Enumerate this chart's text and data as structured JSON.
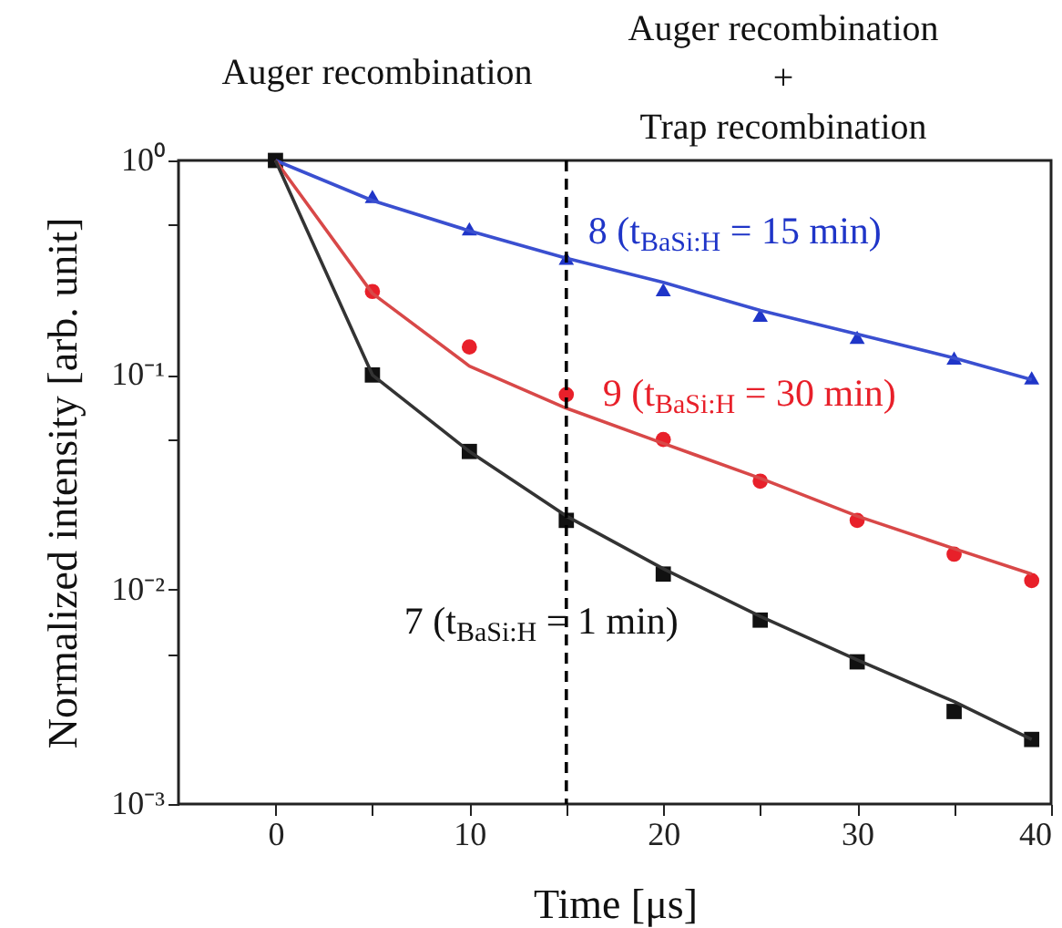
{
  "chart_data": {
    "type": "scatter",
    "xlabel": "Time [μs]",
    "ylabel": "Normalized intensity [arb. unit]",
    "annotations": [
      "Auger recombination",
      "Auger recombination\n+\nTrap recombination"
    ],
    "log": "y",
    "xlim": [
      -5,
      40
    ],
    "xticks": [
      0,
      {
        "value": 5,
        "label": null
      },
      10,
      {
        "value": 15,
        "label": null
      },
      20,
      {
        "value": 25,
        "label": null
      },
      30,
      {
        "value": 35,
        "label": null
      },
      40
    ],
    "ylim": [
      0.001,
      1
    ],
    "yticks": [
      {
        "value": 0.001,
        "label": "10⁻³"
      },
      {
        "value": 0.005,
        "label": null
      },
      {
        "value": 0.01,
        "label": "10⁻²"
      },
      {
        "value": 0.05,
        "label": null
      },
      {
        "value": 0.1,
        "label": "10⁻¹"
      },
      {
        "value": 0.5,
        "label": null
      },
      {
        "value": 1,
        "label": "10⁰"
      }
    ],
    "ref_lines": [
      {
        "axis": "x",
        "value": 15,
        "color": "#000000",
        "line_style": "dashed"
      }
    ],
    "series": [
      {
        "name": "8 (t$_{BaSi:H}$ = 15 min)",
        "marker": "triangle",
        "color": "#1f35c8",
        "x": [
          5,
          10,
          15,
          20,
          25,
          30,
          35,
          39
        ],
        "values": [
          0.68,
          0.48,
          0.35,
          0.25,
          0.19,
          0.15,
          0.12,
          0.097
        ]
      },
      {
        "name": "9 (t$_{BaSi:H}$ = 30 min)",
        "marker": "circle",
        "color": "#e8202a",
        "x": [
          5,
          10,
          15,
          20,
          25,
          30,
          35,
          39
        ],
        "values": [
          0.245,
          0.135,
          0.081,
          0.05,
          0.032,
          0.021,
          0.0146,
          0.011
        ]
      },
      {
        "name": "7 (t$_{BaSi:H}$ = 1 min)",
        "marker": "square",
        "color": "#111111",
        "x": [
          0,
          5,
          10,
          15,
          20,
          25,
          30,
          35,
          39
        ],
        "values": [
          1,
          0.1,
          0.044,
          0.021,
          0.0118,
          0.0072,
          0.0046,
          0.0027,
          0.002
        ]
      },
      {
        "type": "line",
        "marker": "none",
        "line_style": "solid",
        "color": "#3a4fd0",
        "x": [
          0,
          5,
          10,
          15,
          20,
          25,
          30,
          35,
          39
        ],
        "values": [
          1,
          0.65,
          0.47,
          0.35,
          0.27,
          0.2,
          0.155,
          0.12,
          0.095
        ]
      },
      {
        "type": "line",
        "marker": "none",
        "line_style": "solid",
        "color": "#d84848",
        "x": [
          0,
          5,
          10,
          15,
          20,
          25,
          30,
          35,
          39
        ],
        "values": [
          1,
          0.24,
          0.11,
          0.07,
          0.048,
          0.033,
          0.022,
          0.0155,
          0.0118
        ]
      },
      {
        "type": "line",
        "marker": "none",
        "line_style": "solid",
        "color": "#333333",
        "x": [
          0,
          5,
          10,
          15,
          20,
          25,
          30,
          35,
          39
        ],
        "values": [
          1,
          0.1,
          0.044,
          0.022,
          0.0125,
          0.0075,
          0.0047,
          0.003,
          0.002
        ]
      }
    ]
  }
}
